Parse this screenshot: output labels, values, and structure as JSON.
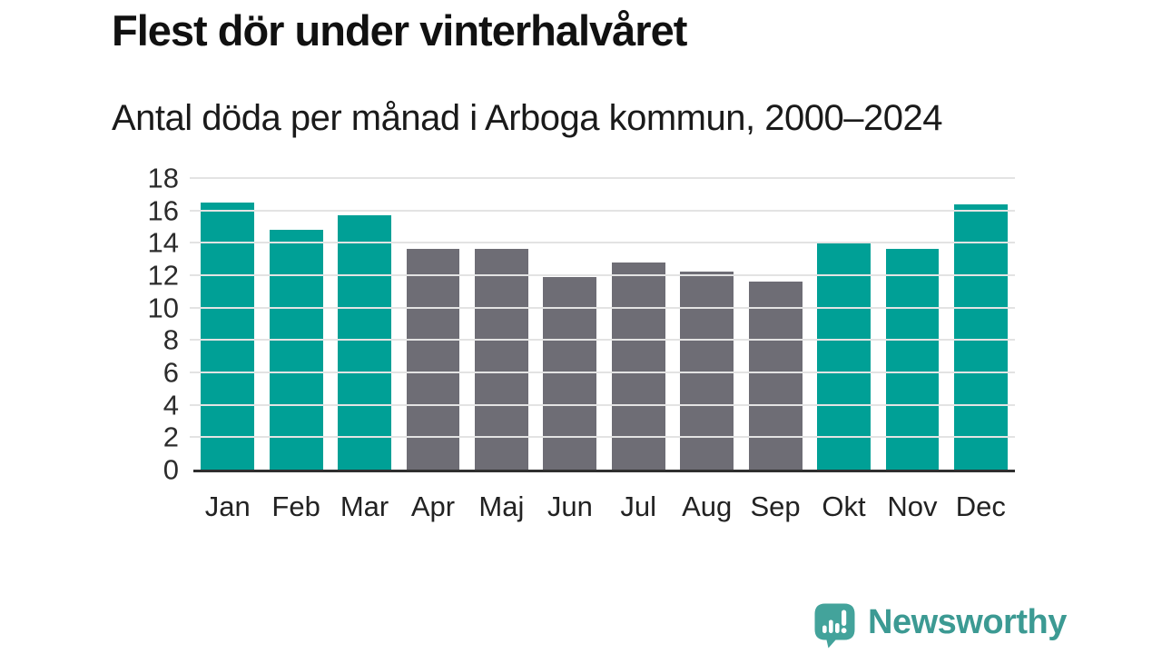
{
  "chart_data": {
    "type": "bar",
    "title": "Flest dör under vinterhalvåret",
    "subtitle": "Antal döda per månad i Arboga kommun, 2000–2024",
    "categories": [
      "Jan",
      "Feb",
      "Mar",
      "Apr",
      "Maj",
      "Jun",
      "Jul",
      "Aug",
      "Sep",
      "Okt",
      "Nov",
      "Dec"
    ],
    "values": [
      16.5,
      14.8,
      15.7,
      13.6,
      13.6,
      11.9,
      12.8,
      12.2,
      11.6,
      14.0,
      13.6,
      16.4
    ],
    "highlighted": [
      true,
      true,
      true,
      false,
      false,
      false,
      false,
      false,
      false,
      true,
      true,
      true
    ],
    "highlight_color": "#00a096",
    "default_color": "#6e6d75",
    "xlabel": "",
    "ylabel": "",
    "ylim": [
      0,
      18
    ],
    "yticks": [
      0,
      2,
      4,
      6,
      8,
      10,
      12,
      14,
      16,
      18
    ],
    "grid": "horizontal",
    "gridline_color": "#e3e3e3",
    "axis_line_color": "#2f2f2f",
    "legend": "none"
  },
  "footer": {
    "brand": "Newsworthy",
    "brand_color": "#3c9a93",
    "logo_color": "#43a39b",
    "logo_icon": "newsworthy-speech-bubble-bar-chart-icon"
  }
}
